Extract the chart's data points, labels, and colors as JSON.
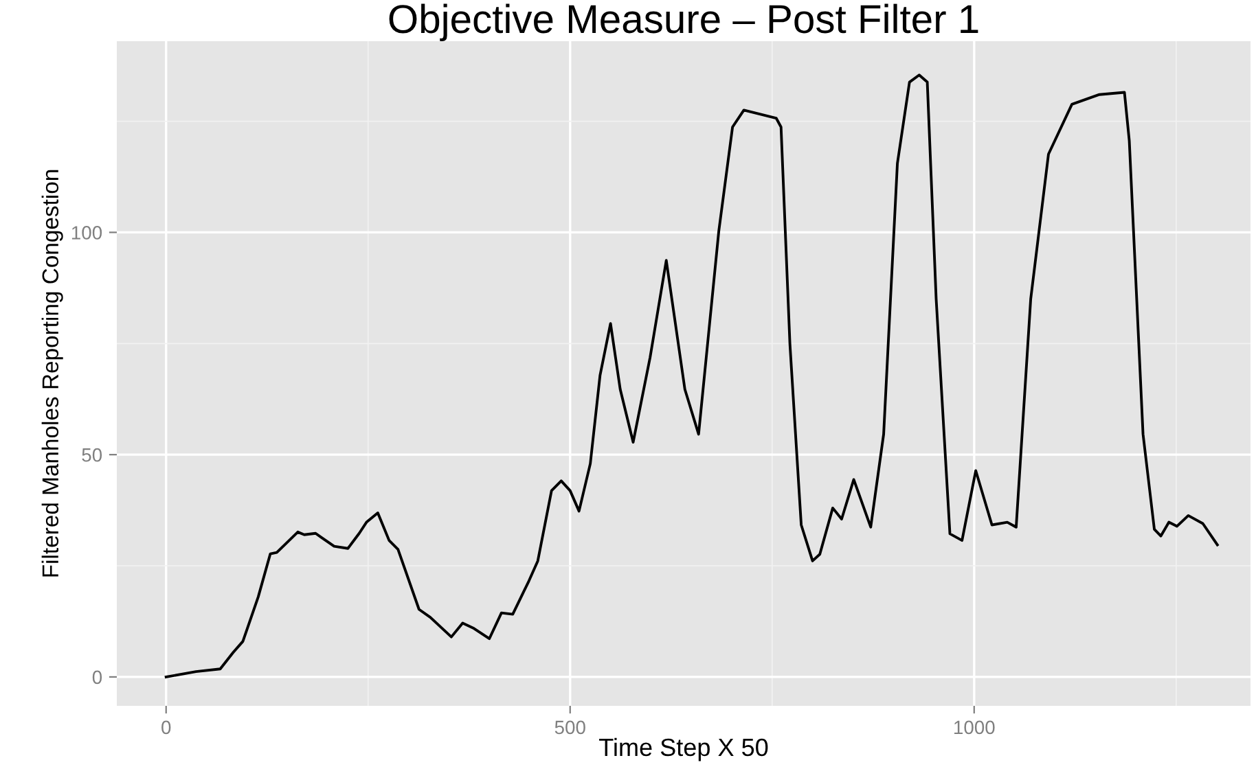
{
  "chart_data": {
    "type": "line",
    "title": "Objective Measure – Post Filter 1",
    "xlabel": "Time Step X 50",
    "ylabel": "Filtered Manholes Reporting Congestion",
    "xlim": [
      -61,
      1342
    ],
    "ylim": [
      -6.5,
      143
    ],
    "xticks": [
      0,
      {
        "value": 250,
        "label": null
      },
      500,
      {
        "value": 750,
        "label": null
      },
      1000,
      {
        "value": 1250,
        "label": null
      }
    ],
    "yticks": [
      0,
      {
        "value": 25,
        "label": null
      },
      50,
      {
        "value": 75,
        "label": null
      },
      100,
      {
        "value": 125,
        "label": null
      }
    ],
    "grid": true,
    "line_style": "solid",
    "marker": "none",
    "x": [
      0,
      37,
      67,
      83,
      95,
      114,
      129,
      137,
      163,
      171,
      185,
      192,
      208,
      225,
      239,
      248,
      262,
      276,
      287,
      313,
      327,
      353,
      367,
      381,
      400,
      415,
      429,
      449,
      460,
      477,
      489,
      500,
      511,
      525,
      537,
      550,
      562,
      578,
      599,
      619,
      642,
      659,
      684,
      701,
      715,
      755,
      761,
      772,
      786,
      800,
      809,
      825,
      836,
      851,
      872,
      888,
      905,
      920,
      932,
      942,
      953,
      970,
      985,
      1002,
      1022,
      1041,
      1052,
      1070,
      1092,
      1121,
      1155,
      1186,
      1192,
      1209,
      1223,
      1231,
      1241,
      1251,
      1265,
      1283,
      1301
    ],
    "series": [
      {
        "color": "#000000",
        "values": [
          0,
          1.2,
          1.8,
          5.5,
          8,
          18,
          27.7,
          28,
          32.6,
          32,
          32.3,
          31.4,
          29.4,
          28.9,
          32.3,
          34.8,
          36.9,
          30.7,
          28.7,
          15.2,
          13.4,
          9,
          12.1,
          10.9,
          8.6,
          14.4,
          14.1,
          21.6,
          26.1,
          41.9,
          44.1,
          41.9,
          37.3,
          48,
          67.8,
          79.5,
          64.7,
          52.8,
          71.9,
          93.7,
          64.7,
          54.6,
          100.3,
          123.7,
          127.5,
          125.7,
          123.7,
          74.9,
          34.2,
          26.1,
          27.6,
          38,
          35.5,
          44.4,
          33.7,
          54.6,
          115.5,
          133.8,
          135.4,
          133.8,
          85,
          32.2,
          30.7,
          46.4,
          34.2,
          34.8,
          33.7,
          85,
          117.6,
          128.8,
          131,
          131.5,
          120.6,
          54.6,
          33.2,
          31.7,
          34.8,
          33.9,
          36.3,
          34.5,
          29.7
        ]
      }
    ]
  }
}
